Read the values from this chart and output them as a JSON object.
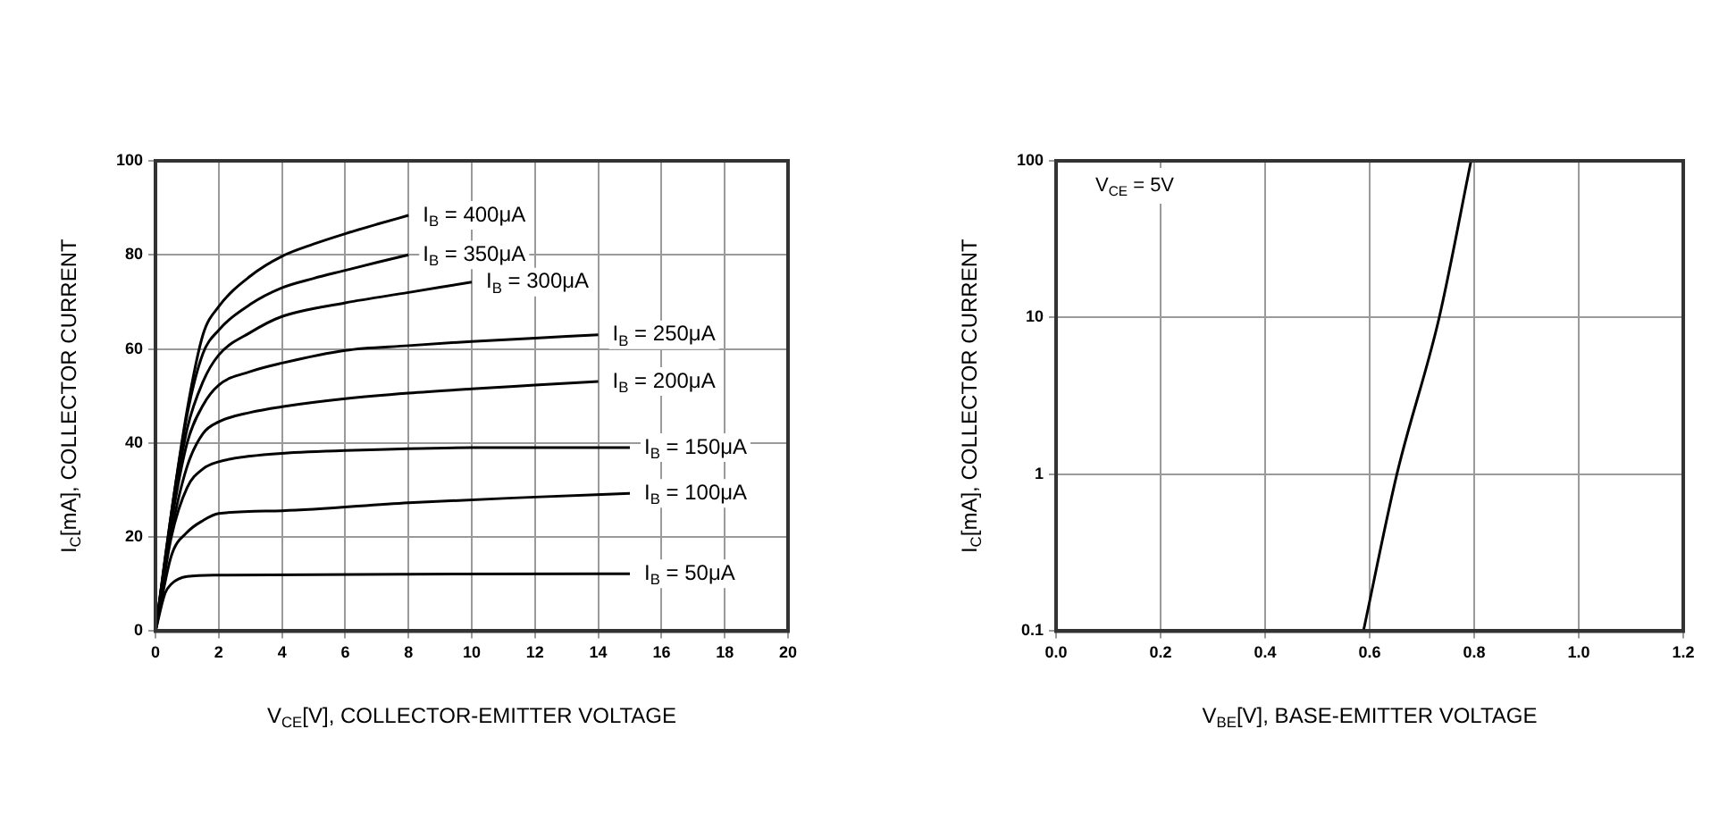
{
  "chart_data": [
    {
      "type": "line",
      "xlabel": "V$_{CE}$[V], COLLECTOR-EMITTER VOLTAGE",
      "ylabel": "I$_{C}$[mA], COLLECTOR CURRENT",
      "xlim": [
        0,
        20
      ],
      "xticks": [
        0,
        2,
        4,
        6,
        8,
        10,
        12,
        14,
        16,
        18,
        20
      ],
      "ylim": [
        0,
        100
      ],
      "yticks": [
        0,
        20,
        40,
        60,
        80,
        100
      ],
      "grid": true,
      "legend": false,
      "marker": "none",
      "line_style": "solid",
      "series": [
        {
          "name": "I$_{B}$ = 400μA",
          "color": "#000000",
          "x": [
            0,
            0.5,
            1,
            1.5,
            2,
            3,
            4,
            5,
            6,
            7,
            8
          ],
          "values": [
            0,
            25,
            47,
            63,
            69,
            75.5,
            79.7,
            82.3,
            84.5,
            86.5,
            88.4
          ]
        },
        {
          "name": "I$_{B}$ = 350μA",
          "color": "#000000",
          "x": [
            0,
            0.5,
            1,
            1.5,
            2,
            3,
            4,
            5,
            6,
            7,
            8
          ],
          "values": [
            0,
            25,
            46,
            59,
            64,
            69.5,
            73,
            75,
            76.7,
            78.4,
            80
          ]
        },
        {
          "name": "I$_{B}$ = 300μA",
          "color": "#000000",
          "x": [
            0,
            0.5,
            1,
            1.5,
            2,
            3,
            4,
            6,
            8,
            10
          ],
          "values": [
            0,
            24,
            43,
            53,
            58.7,
            63.5,
            66.9,
            69.8,
            72,
            74.2
          ]
        },
        {
          "name": "I$_{B}$ = 250μA",
          "color": "#000000",
          "x": [
            0,
            0.5,
            1,
            1.5,
            2,
            3,
            4,
            6,
            8,
            10,
            12,
            14
          ],
          "values": [
            0,
            23,
            40,
            48,
            52.3,
            55.2,
            57,
            59.7,
            60.7,
            61.6,
            62.3,
            63
          ]
        },
        {
          "name": "I$_{B}$ = 200μA",
          "color": "#000000",
          "x": [
            0,
            0.5,
            1,
            1.5,
            2,
            3,
            4,
            6,
            8,
            10,
            12,
            14
          ],
          "values": [
            0,
            21,
            35,
            42,
            44.5,
            46.5,
            47.7,
            49.4,
            50.6,
            51.5,
            52.3,
            53.1
          ]
        },
        {
          "name": "I$_{B}$ = 150μA",
          "color": "#000000",
          "x": [
            0,
            0.5,
            1,
            1.5,
            2,
            3,
            4,
            6,
            10,
            15
          ],
          "values": [
            0,
            20,
            30.5,
            34.5,
            36,
            37.2,
            37.8,
            38.4,
            39,
            39
          ]
        },
        {
          "name": "I$_{B}$ = 100μA",
          "color": "#000000",
          "x": [
            0,
            0.5,
            1,
            1.5,
            2,
            4,
            8,
            12,
            15
          ],
          "values": [
            0,
            16,
            21,
            23.5,
            25,
            25.6,
            27.3,
            28.5,
            29.3
          ]
        },
        {
          "name": "I$_{B}$ = 50μA",
          "color": "#000000",
          "x": [
            0,
            0.3,
            0.5,
            1,
            2,
            8,
            15
          ],
          "values": [
            0,
            8,
            10,
            11.6,
            11.9,
            12.1,
            12.2
          ]
        }
      ]
    },
    {
      "type": "line",
      "log": "y",
      "xlabel": "V$_{BE}$[V], BASE-EMITTER VOLTAGE",
      "ylabel": "I$_{C}$[mA], COLLECTOR CURRENT",
      "xlim": [
        0,
        1.2
      ],
      "xticks": [
        {
          "value": 0,
          "label": "0.0"
        },
        0.2,
        0.4,
        0.6,
        0.8,
        {
          "value": 1,
          "label": "1.0"
        },
        1.2
      ],
      "ylim": [
        0.1,
        100
      ],
      "yticks": [
        0.1,
        1,
        10,
        100
      ],
      "grid": true,
      "legend": false,
      "marker": "none",
      "line_style": "solid",
      "annotations": [
        "V$_{CE}$ = 5V"
      ],
      "series": [
        {
          "color": "#000000",
          "x": [
            0.588,
            0.652,
            0.733,
            0.794
          ],
          "values": [
            0.1,
            1,
            10,
            100
          ]
        }
      ]
    }
  ]
}
